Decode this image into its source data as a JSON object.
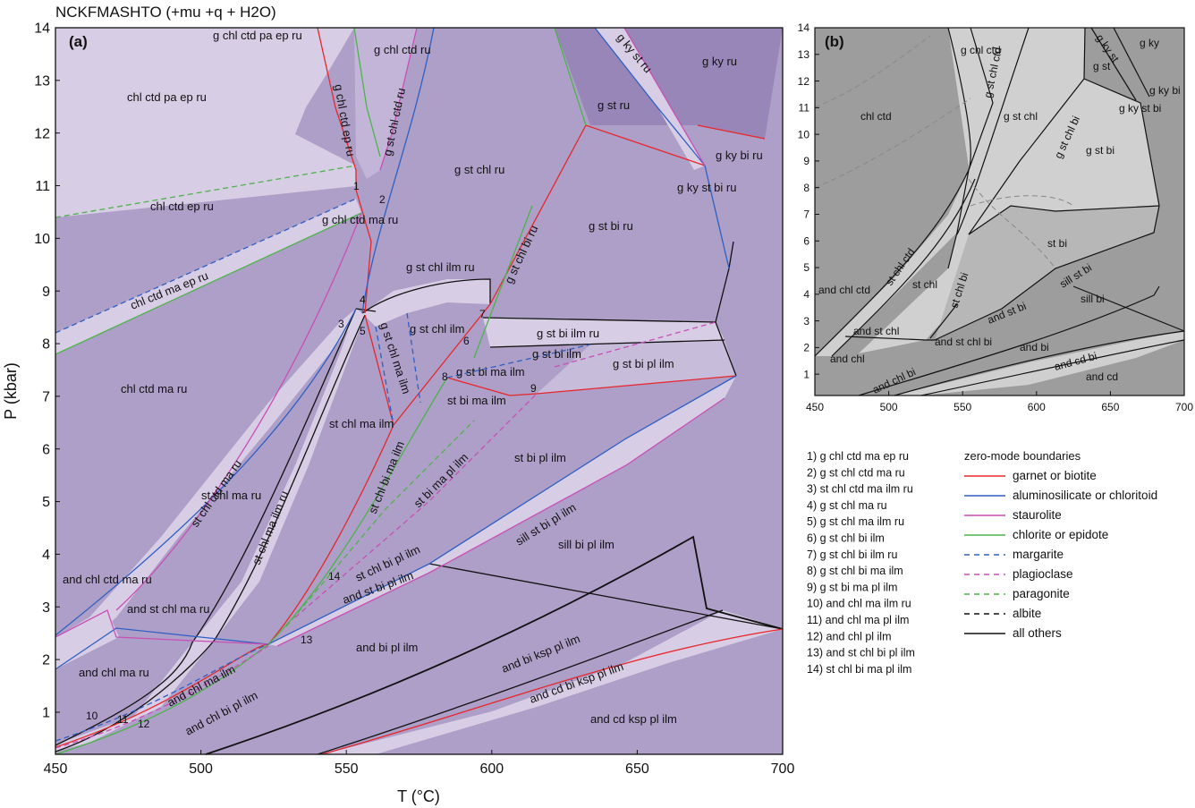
{
  "title": "NCKFMASHTO (+mu +q + H2O)",
  "panel_a": {
    "label": "(a)",
    "xlabel": "T (°C)",
    "ylabel": "P (kbar)",
    "x_ticks": [
      "450",
      "500",
      "550",
      "600",
      "650",
      "700"
    ],
    "y_ticks": [
      "1",
      "2",
      "3",
      "4",
      "5",
      "6",
      "7",
      "8",
      "9",
      "10",
      "11",
      "12",
      "13",
      "14"
    ],
    "field_labels": [
      "g chl ctd pa ep ru",
      "chl ctd pa ep ru",
      "g chl ctd ep ru",
      "g chl ctd ru",
      "g st chl ctd ru",
      "g ky st ru",
      "g ky ru",
      "g st ru",
      "g ky bi ru",
      "chl ctd ep ru",
      "g chl ctd ma ru",
      "g st chl ru",
      "g ky st bi ru",
      "g st bi ru",
      "g st chl bi ru",
      "chl ctd ma ep ru",
      "g st chl ilm ru",
      "g st chl ilm",
      "g st chl ma ilm",
      "g st bi ilm ru",
      "g st bi ilm",
      "g st bi pl ilm",
      "g st bi ma ilm",
      "st bi ma ilm",
      "chl ctd ma ru",
      "st chl ma ilm",
      "st chl bi ma ilm",
      "st bi ma pl ilm",
      "st bi pl ilm",
      "st chl ctd ma ru",
      "st chl ma ilm ru",
      "st chl ma ru",
      "sill st bi pl ilm",
      "sill bi pl ilm",
      "st chl bi pl ilm",
      "and st bi pl ilm",
      "and chl ctd ma ru",
      "and st chl ma ru",
      "and bi pl ilm",
      "and chl ma ru",
      "and chl ma ilm",
      "and chl bi pl ilm",
      "and bi ksp pl ilm",
      "and cd bi ksp pl ilm",
      "and cd ksp pl ilm"
    ],
    "point_labels": [
      "1",
      "2",
      "3",
      "4",
      "5",
      "6",
      "7",
      "8",
      "9",
      "10",
      "11",
      "12",
      "13",
      "14"
    ]
  },
  "panel_b": {
    "label": "(b)",
    "x_ticks": [
      "450",
      "500",
      "550",
      "600",
      "650",
      "700"
    ],
    "y_ticks": [
      "1",
      "2",
      "3",
      "4",
      "5",
      "6",
      "7",
      "8",
      "9",
      "10",
      "11",
      "12",
      "13",
      "14"
    ],
    "field_labels": [
      "chl ctd",
      "g chl ctd",
      "g st chl ctd",
      "g ky st",
      "g ky",
      "g st",
      "g st chl",
      "g st chl bi",
      "g ky bi",
      "g ky st bi",
      "g st bi",
      "st chl ctd",
      "st chl",
      "st chl bi",
      "st bi",
      "sill st bi",
      "sill bi",
      "and chl ctd",
      "and st chl",
      "and st chl bi",
      "and st bi",
      "and bi",
      "and cd bi",
      "and cd",
      "and chl",
      "and chl bi"
    ]
  },
  "assemblage_list": [
    "1) g chl ctd ma ep ru",
    "2) g st chl ctd ma ru",
    "3) st chl ctd ma ilm ru",
    "4) g st chl ma ru",
    "5) g st chl ma ilm ru",
    "6) g st chl bi ilm",
    "7) g st chl bi ilm ru",
    "8) g st chl bi ma ilm",
    "9) g st bi ma pl ilm",
    "10) and chl ma ilm ru",
    "11) and chl ma pl ilm",
    "12) and chl pl ilm",
    "13) and st chl bi pl ilm",
    "14) st chl bi ma pl ilm"
  ],
  "legend": {
    "title": "zero-mode boundaries",
    "items": [
      {
        "label": "garnet or biotite",
        "color": "#e8262a",
        "dash": false
      },
      {
        "label": "aluminosilicate or chloritoid",
        "color": "#2f5fc4",
        "dash": false
      },
      {
        "label": "staurolite",
        "color": "#c94fb6",
        "dash": false
      },
      {
        "label": "chlorite or epidote",
        "color": "#4db34a",
        "dash": false
      },
      {
        "label": "margarite",
        "color": "#2f5fc4",
        "dash": true
      },
      {
        "label": "plagioclase",
        "color": "#c94fb6",
        "dash": true
      },
      {
        "label": "paragonite",
        "color": "#4db34a",
        "dash": true
      },
      {
        "label": "albite",
        "color": "#111111",
        "dash": true
      },
      {
        "label": "all others",
        "color": "#111111",
        "dash": false
      }
    ]
  },
  "colors": {
    "field_light": "#d7cde4",
    "field_mid": "#ad9fc7",
    "field_dark": "#9786b7",
    "panel_b_light": "#d0d0d0",
    "panel_b_mid": "#b7b7b7",
    "panel_b_dark": "#9d9d9d"
  }
}
